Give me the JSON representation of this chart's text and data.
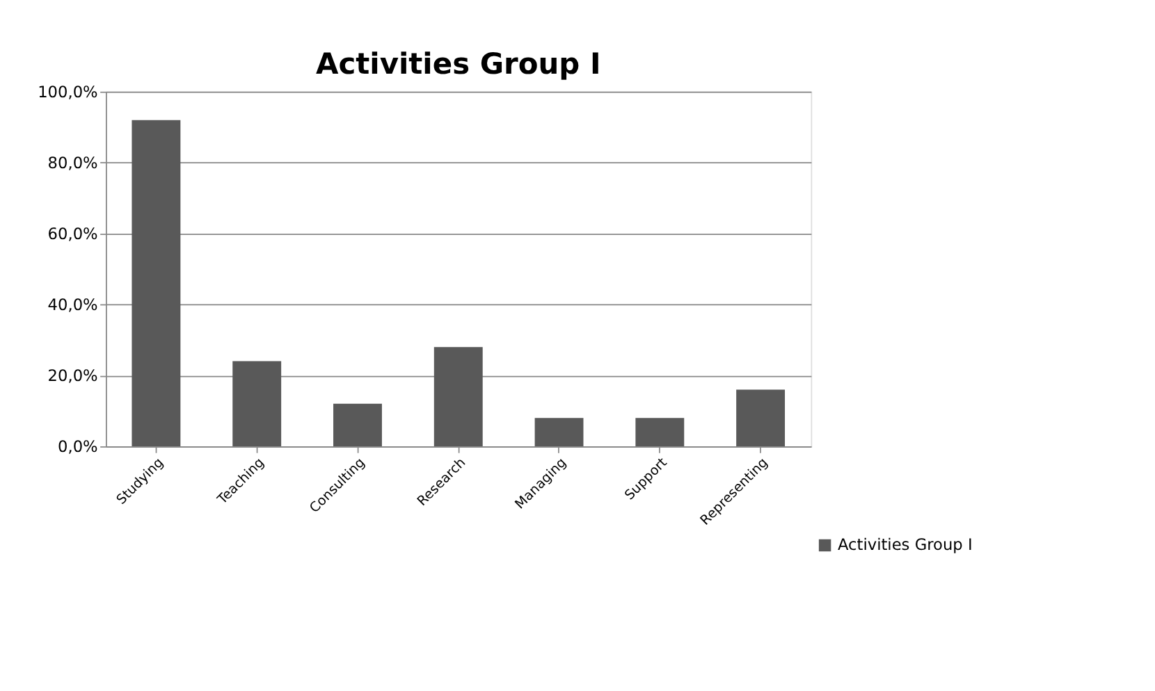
{
  "chart_data": {
    "type": "bar",
    "title": "Activities Group I",
    "categories": [
      "Studying",
      "Teaching",
      "Consulting",
      "Research",
      "Managing",
      "Support",
      "Representing"
    ],
    "series": [
      {
        "name": "Activities Group I",
        "color": "#595959",
        "values": [
          92,
          24,
          12,
          28,
          8,
          8,
          16
        ]
      }
    ],
    "ylim": [
      0,
      100
    ],
    "yticks": [
      {
        "value": 0,
        "label": "0,0%"
      },
      {
        "value": 20,
        "label": "20,0%"
      },
      {
        "value": 40,
        "label": "40,0%"
      },
      {
        "value": 60,
        "label": "60,0%"
      },
      {
        "value": 80,
        "label": "80,0%"
      },
      {
        "value": 100,
        "label": "100,0%"
      }
    ],
    "grid": "y",
    "legend": "bottom right"
  }
}
